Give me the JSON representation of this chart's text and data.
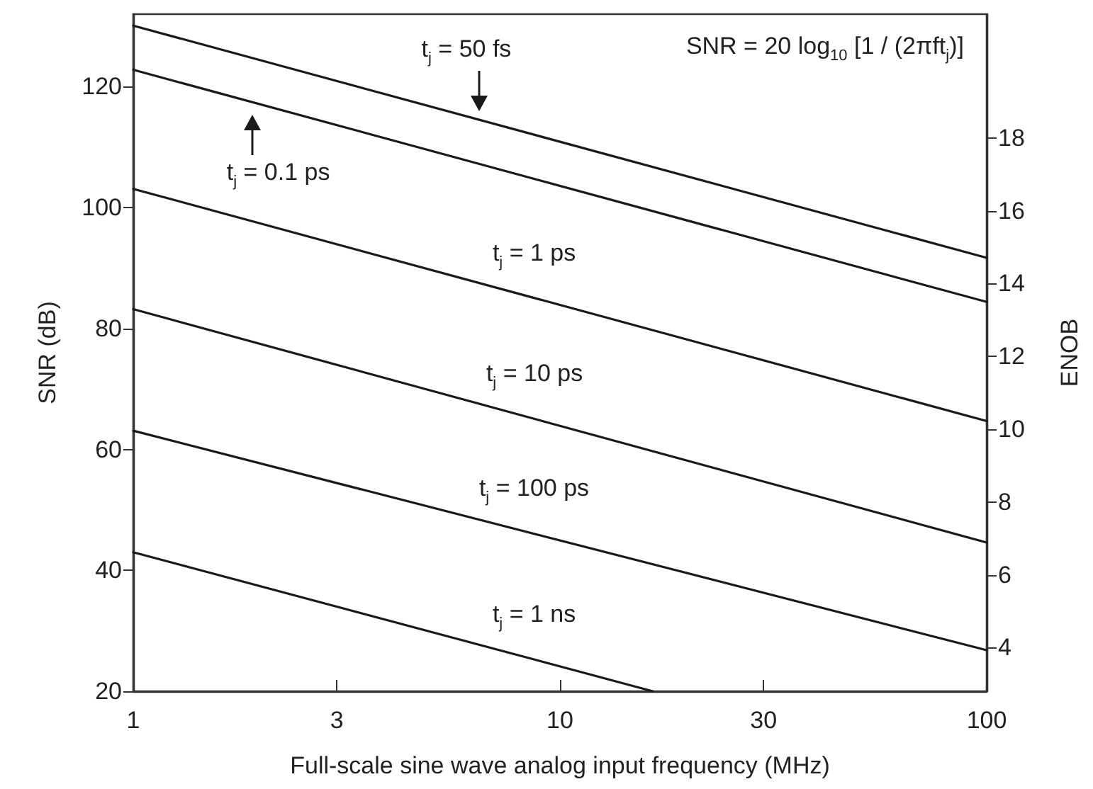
{
  "chart_data": {
    "type": "line",
    "xlabel": "Full-scale sine wave analog input frequency (MHz)",
    "ylabel": "SNR (dB)",
    "y2label": "ENOB",
    "log": "x",
    "xlim": [
      1,
      100
    ],
    "xticks": [
      1,
      3,
      10,
      30,
      100
    ],
    "ylim": [
      20,
      132
    ],
    "yticks": [
      20,
      40,
      60,
      80,
      100,
      120
    ],
    "y2lim": [
      2.8,
      21.4
    ],
    "y2ticks": [
      4,
      6,
      8,
      10,
      12,
      14,
      16,
      18
    ],
    "grid": false,
    "marker": "none",
    "line_style": "solid",
    "series": [
      {
        "name": "t$_{j}$ = 50 fs",
        "color": "#1a1a1a",
        "x": [
          1,
          100
        ],
        "values": [
          130.1,
          91.7
        ]
      },
      {
        "name": "t$_{j}$ = 0.1 ps",
        "color": "#1a1a1a",
        "x": [
          1,
          100
        ],
        "values": [
          122.8,
          84.4
        ]
      },
      {
        "name": "t$_{j}$ = 1 ps",
        "color": "#1a1a1a",
        "x": [
          1,
          100
        ],
        "values": [
          103.1,
          64.7
        ]
      },
      {
        "name": "t$_{j}$ = 10 ps",
        "color": "#1a1a1a",
        "x": [
          1,
          100
        ],
        "values": [
          83.2,
          44.6
        ]
      },
      {
        "name": "t$_{j}$ = 100 ps",
        "color": "#1a1a1a",
        "x": [
          1,
          100
        ],
        "values": [
          63.1,
          26.8
        ]
      },
      {
        "name": "t$_{j}$ = 1 ns",
        "color": "#1a1a1a",
        "x": [
          1,
          16.5
        ],
        "values": [
          43,
          20
        ]
      }
    ],
    "annotations": [
      "SNR = 20 log$_{10}$ [1 / (2πft$_{j}$)]"
    ]
  }
}
